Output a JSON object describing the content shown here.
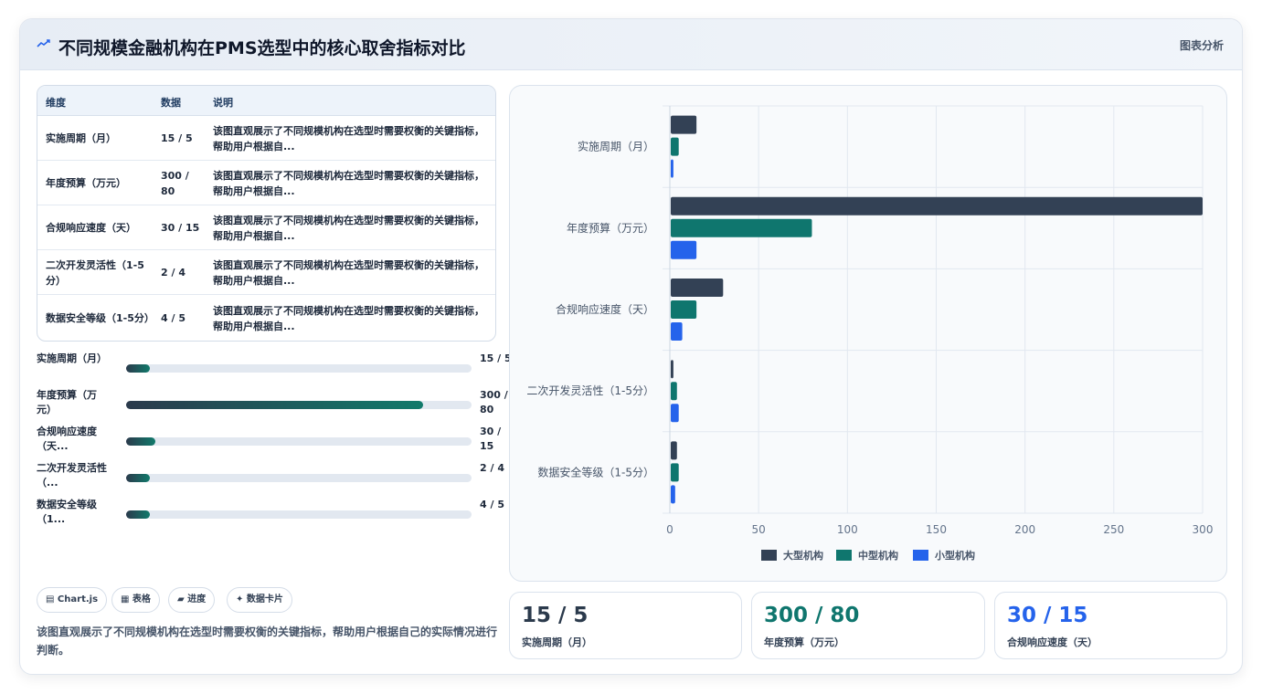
{
  "header": {
    "title": "不同规模金融机构在PMS选型中的核心取舍指标对比",
    "tag": "图表分析",
    "icon": "chart-line-icon"
  },
  "table": {
    "headers": [
      "维度",
      "数据",
      "说明"
    ],
    "rows": [
      {
        "dim": "实施周期（月）",
        "data": "15 / 5",
        "desc": "该图直观展示了不同规模机构在选型时需要权衡的关键指标，帮助用户根据自..."
      },
      {
        "dim": "年度预算（万元）",
        "data": "300 / 80",
        "desc": "该图直观展示了不同规模机构在选型时需要权衡的关键指标，帮助用户根据自..."
      },
      {
        "dim": "合规响应速度（天）",
        "data": "30 / 15",
        "desc": "该图直观展示了不同规模机构在选型时需要权衡的关键指标，帮助用户根据自..."
      },
      {
        "dim": "二次开发灵活性（1-5分）",
        "data": "2 / 4",
        "desc": "该图直观展示了不同规模机构在选型时需要权衡的关键指标，帮助用户根据自..."
      },
      {
        "dim": "数据安全等级（1-5分）",
        "data": "4 / 5",
        "desc": "该图直观展示了不同规模机构在选型时需要权衡的关键指标，帮助用户根据自..."
      }
    ]
  },
  "progress": [
    {
      "label": "实施周期（月）",
      "value": "15 / 5",
      "fraction": 0.07
    },
    {
      "label": "年度预算（万元）",
      "value": "300 / 80",
      "fraction": 0.86
    },
    {
      "label": "合规响应速度（天...",
      "value": "30 / 15",
      "fraction": 0.085
    },
    {
      "label": "二次开发灵活性（...",
      "value": "2 / 4",
      "fraction": 0.07
    },
    {
      "label": "数据安全等级（1...",
      "value": "4 / 5",
      "fraction": 0.07
    }
  ],
  "chips": [
    {
      "icon": "chart-icon",
      "label": "▤ Chart.js"
    },
    {
      "icon": "table-icon",
      "label": "▦ 表格"
    },
    {
      "icon": "progress-icon",
      "label": "▰ 进度"
    },
    {
      "icon": "sparkle-icon",
      "label": "✦ 数据卡片"
    }
  ],
  "description": "该图直观展示了不同规模机构在选型时需要权衡的关键指标，帮助用户根据自己的实际情况进行判断。",
  "stats": [
    {
      "value": "15 / 5",
      "label": "实施周期（月）",
      "color": "#2b3a4c"
    },
    {
      "value": "300 / 80",
      "label": "年度预算（万元）",
      "color": "#0f766e"
    },
    {
      "value": "30 / 15",
      "label": "合规响应速度（天）",
      "color": "#2563eb"
    }
  ],
  "chart_data": {
    "type": "bar",
    "orientation": "horizontal",
    "categories": [
      "实施周期（月）",
      "年度预算（万元）",
      "合规响应速度（天）",
      "二次开发灵活性（1-5分）",
      "数据安全等级（1-5分）"
    ],
    "series": [
      {
        "name": "大型机构",
        "color": "#334155",
        "values": [
          15,
          300,
          30,
          2,
          4
        ]
      },
      {
        "name": "中型机构",
        "color": "#0f766e",
        "values": [
          5,
          80,
          15,
          4,
          5
        ]
      },
      {
        "name": "小型机构",
        "color": "#2563eb",
        "values": [
          2,
          15,
          7,
          5,
          3
        ]
      }
    ],
    "xlim": [
      0,
      300
    ],
    "xticks": [
      0,
      50,
      100,
      150,
      200,
      250,
      300
    ],
    "grid": true,
    "legend": "bottom"
  }
}
